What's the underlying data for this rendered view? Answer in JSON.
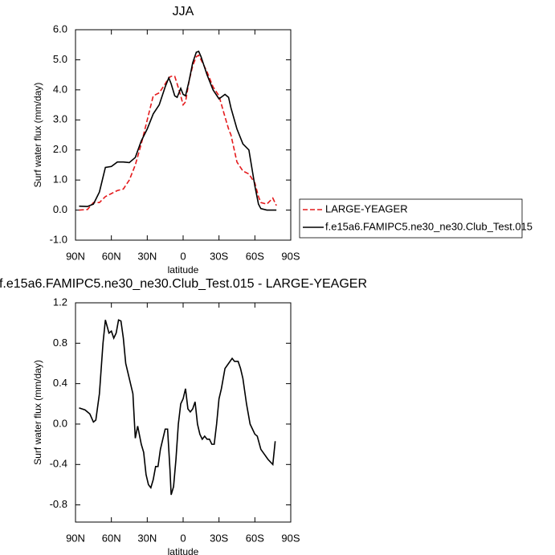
{
  "chart_data": [
    {
      "type": "line",
      "title": "JJA",
      "xlabel": "latitude",
      "ylabel": "Surf water flux (mm/day)",
      "x": [
        87,
        80,
        75,
        70,
        65,
        60,
        55,
        50,
        45,
        40,
        35,
        30,
        25,
        20,
        15,
        12,
        10,
        7,
        5,
        2,
        0,
        -2,
        -5,
        -8,
        -11,
        -13,
        -15,
        -20,
        -25,
        -30,
        -35,
        -38,
        -40,
        -45,
        -50,
        -55,
        -60,
        -63,
        -65,
        -70,
        -75,
        -78
      ],
      "series": [
        {
          "name": "LARGE-YEAGER",
          "color": "#e41a1c",
          "linestyle": "dashed",
          "values": [
            0,
            0.02,
            0.25,
            0.25,
            0.45,
            0.55,
            0.65,
            0.7,
            1.0,
            1.5,
            2.2,
            3.0,
            3.8,
            3.9,
            4.2,
            4.4,
            4.45,
            4.45,
            4.2,
            3.8,
            3.5,
            3.6,
            4.3,
            4.8,
            5.1,
            5.15,
            5.0,
            4.6,
            4.1,
            3.8,
            3.1,
            2.7,
            2.5,
            1.6,
            1.3,
            1.2,
            0.9,
            0.45,
            0.25,
            0.2,
            0.4,
            0.15
          ]
        },
        {
          "name": "f.e15a6.FAMIPC5.ne30_ne30.Club_Test.015",
          "color": "#000000",
          "linestyle": "solid",
          "values": [
            0.13,
            0.12,
            0.2,
            0.6,
            1.42,
            1.45,
            1.6,
            1.6,
            1.58,
            1.75,
            2.3,
            2.7,
            3.2,
            3.5,
            4.1,
            4.4,
            4.2,
            3.8,
            3.75,
            4.05,
            3.85,
            3.8,
            4.3,
            4.9,
            5.25,
            5.28,
            5.1,
            4.5,
            4.0,
            3.7,
            3.85,
            3.75,
            3.4,
            2.7,
            2.2,
            2.0,
            0.8,
            0.2,
            0.05,
            0.0,
            0.0,
            0.0
          ]
        }
      ],
      "xlim": [
        90,
        -90
      ],
      "xticks": [
        {
          "value": 90,
          "label": "90N"
        },
        {
          "value": 60,
          "label": "60N"
        },
        {
          "value": 30,
          "label": "30N"
        },
        0,
        {
          "value": -30,
          "label": "30S"
        },
        {
          "value": -60,
          "label": "60S"
        },
        {
          "value": -90,
          "label": "90S"
        }
      ],
      "ylim": [
        -1,
        6
      ],
      "yticks": [
        {
          "value": -1,
          "label": "-1.0"
        },
        {
          "value": 0,
          "label": "0.0"
        },
        {
          "value": 1,
          "label": "1.0"
        },
        {
          "value": 2,
          "label": "2.0"
        },
        {
          "value": 3,
          "label": "3.0"
        },
        {
          "value": 4,
          "label": "4.0"
        },
        {
          "value": 5,
          "label": "5.0"
        },
        {
          "value": 6,
          "label": "6.0"
        }
      ],
      "legend": "right"
    },
    {
      "type": "line",
      "title": "f.e15a6.FAMIPC5.ne30_ne30.Club_Test.015 - LARGE-YEAGER",
      "xlabel": "latitude",
      "ylabel": "Surf water flux (mm/day)",
      "x": [
        87,
        82,
        78,
        75,
        73,
        70,
        67,
        65,
        62,
        60,
        58,
        56,
        54,
        52,
        50,
        48,
        45,
        42,
        40,
        38,
        35,
        33,
        31,
        29,
        27,
        25,
        23,
        21,
        19,
        17,
        15,
        13,
        11,
        10,
        8,
        6,
        4,
        2,
        0,
        -2,
        -4,
        -6,
        -8,
        -10,
        -12,
        -14,
        -16,
        -18,
        -20,
        -22,
        -24,
        -26,
        -28,
        -30,
        -32,
        -35,
        -38,
        -41,
        -43,
        -46,
        -48,
        -50,
        -53,
        -56,
        -58,
        -60,
        -62,
        -65,
        -68,
        -71,
        -75,
        -77
      ],
      "series": [
        {
          "color": "#000000",
          "linestyle": "solid",
          "values": [
            0.16,
            0.14,
            0.1,
            0.02,
            0.04,
            0.3,
            0.8,
            1.03,
            0.9,
            0.92,
            0.85,
            0.9,
            1.03,
            1.02,
            0.85,
            0.6,
            0.45,
            0.3,
            -0.14,
            -0.02,
            -0.2,
            -0.28,
            -0.5,
            -0.6,
            -0.63,
            -0.55,
            -0.42,
            -0.42,
            -0.25,
            -0.15,
            -0.05,
            -0.05,
            -0.45,
            -0.7,
            -0.62,
            -0.35,
            0.0,
            0.2,
            0.25,
            0.35,
            0.15,
            0.12,
            0.15,
            0.22,
            0.0,
            -0.1,
            -0.15,
            -0.12,
            -0.15,
            -0.15,
            -0.2,
            -0.2,
            0.0,
            0.25,
            0.35,
            0.55,
            0.6,
            0.65,
            0.62,
            0.62,
            0.55,
            0.45,
            0.2,
            0.0,
            -0.05,
            -0.1,
            -0.12,
            -0.25,
            -0.3,
            -0.35,
            -0.4,
            -0.17
          ]
        }
      ],
      "xlim": [
        90,
        -90
      ],
      "xticks": [
        {
          "value": 90,
          "label": "90N"
        },
        {
          "value": 60,
          "label": "60N"
        },
        {
          "value": 30,
          "label": "30N"
        },
        0,
        {
          "value": -30,
          "label": "30S"
        },
        {
          "value": -60,
          "label": "60S"
        },
        {
          "value": -90,
          "label": "90S"
        }
      ],
      "ylim": [
        -0.97,
        1.2
      ],
      "yticks": [
        -0.8,
        -0.4,
        {
          "value": 0,
          "label": "0.0"
        },
        0.4,
        0.8,
        1.2
      ]
    }
  ]
}
